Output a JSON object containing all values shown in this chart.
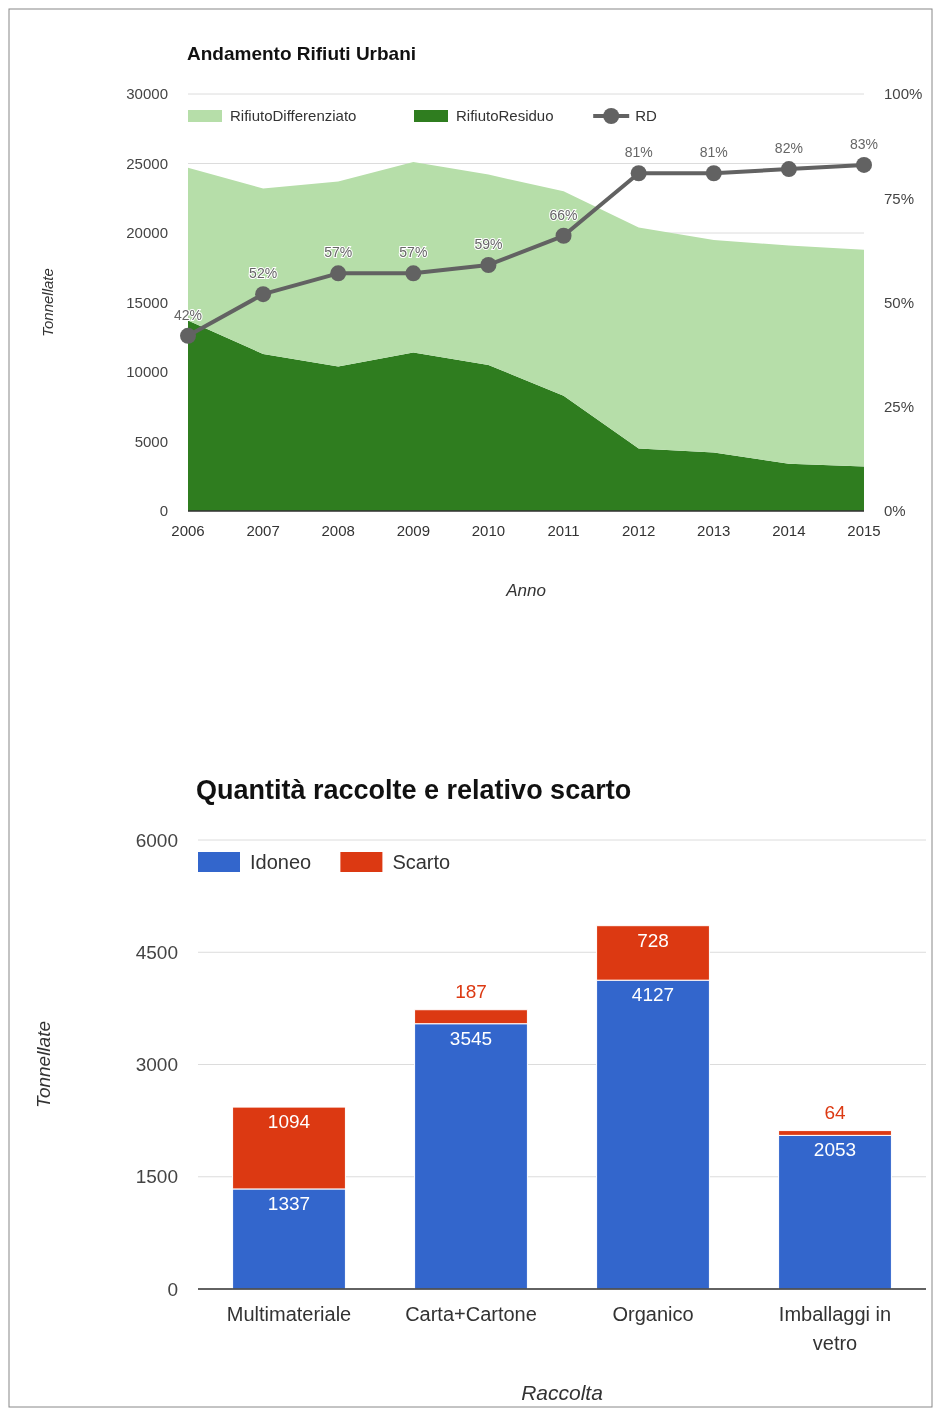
{
  "chart_data": [
    {
      "type": "area",
      "title": "Andamento Rifiuti Urbani",
      "xlabel": "Anno",
      "ylabel": "Tonnellate",
      "x": [
        2006,
        2007,
        2008,
        2009,
        2010,
        2011,
        2012,
        2013,
        2014,
        2015
      ],
      "xlim": [
        2006,
        2015
      ],
      "xticks": [
        2006,
        2007,
        2008,
        2009,
        2010,
        2011,
        2012,
        2013,
        2014,
        2015
      ],
      "ylim": [
        0,
        30000
      ],
      "yticks": [
        0,
        5000,
        10000,
        15000,
        20000,
        25000,
        30000
      ],
      "y2lim": [
        0,
        100
      ],
      "y2ticks": [
        {
          "value": 0,
          "label": "0%"
        },
        {
          "value": 25,
          "label": "25%"
        },
        {
          "value": 50,
          "label": "50%"
        },
        {
          "value": 75,
          "label": "75%"
        },
        {
          "value": 100,
          "label": "100%"
        }
      ],
      "stacked": true,
      "grid": "y",
      "legend": "top left",
      "series": [
        {
          "name": "RifiutoResiduo",
          "color": "#2f7d1f",
          "values": [
            13700,
            11300,
            10400,
            11400,
            10500,
            8300,
            4500,
            4200,
            3400,
            3200
          ]
        },
        {
          "name": "RifiutoDifferenziato",
          "color": "#b6dea9",
          "values": [
            11000,
            11900,
            13300,
            13700,
            13700,
            14700,
            15900,
            15300,
            15700,
            15600
          ]
        },
        {
          "name": "RD",
          "type": "line",
          "axis": "y2",
          "color": "#626262",
          "marker": "circle",
          "values": [
            42,
            52,
            57,
            57,
            59,
            66,
            81,
            81,
            82,
            83
          ],
          "value_labels": [
            "42%",
            "52%",
            "57%",
            "57%",
            "59%",
            "66%",
            "81%",
            "81%",
            "82%",
            "83%"
          ]
        }
      ]
    },
    {
      "type": "bar",
      "title": "Quantità raccolte e relativo scarto",
      "xlabel": "Raccolta",
      "ylabel": "Tonnellate",
      "categories": [
        "Multimateriale",
        "Carta+Cartone",
        "Organico",
        "Imballaggi in vetro"
      ],
      "ylim": [
        0,
        6000
      ],
      "yticks": [
        0,
        1500,
        3000,
        4500,
        6000
      ],
      "stacked": true,
      "grid": "y",
      "legend": "top left",
      "data_labels": true,
      "series": [
        {
          "name": "Idoneo",
          "color": "#3366cc",
          "values": [
            1337,
            3545,
            4127,
            2053
          ]
        },
        {
          "name": "Scarto",
          "color": "#dc3912",
          "values": [
            1094,
            187,
            728,
            64
          ]
        }
      ]
    }
  ]
}
